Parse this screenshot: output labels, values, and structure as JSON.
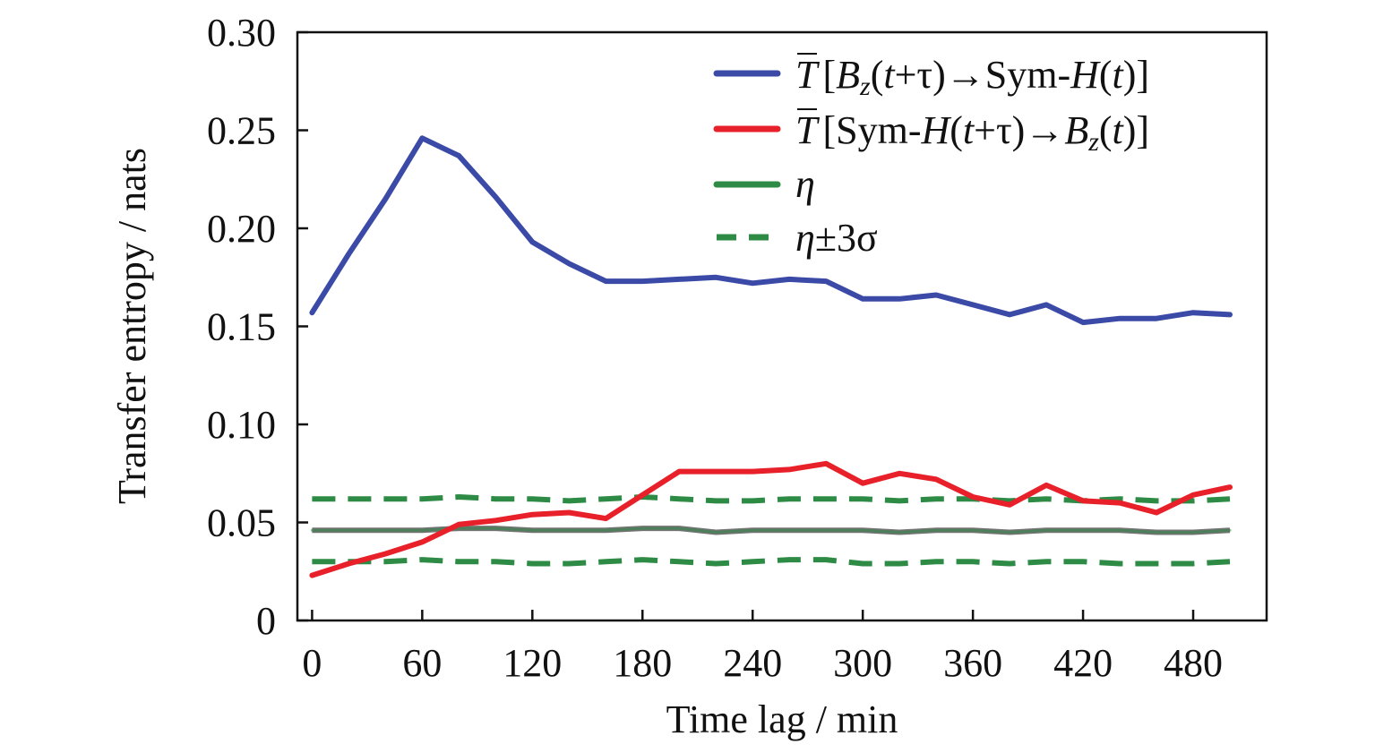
{
  "chart_data": {
    "type": "line",
    "xlabel": "Time lag / min",
    "ylabel": "Transfer entropy / nats",
    "xlim": [
      -8,
      520
    ],
    "ylim": [
      0,
      0.3
    ],
    "xticks": [
      0,
      60,
      120,
      180,
      240,
      300,
      360,
      420,
      480
    ],
    "xtick_labels": [
      "0",
      "60",
      "120",
      "180",
      "240",
      "300",
      "360",
      "420",
      "480"
    ],
    "yticks": [
      0,
      0.05,
      0.1,
      0.15,
      0.2,
      0.25,
      0.3
    ],
    "ytick_labels": [
      "0",
      "0.05",
      "0.10",
      "0.15",
      "0.20",
      "0.25",
      "0.30"
    ],
    "grid": false,
    "legend_position": "top-right",
    "x": [
      0,
      20,
      40,
      60,
      80,
      100,
      120,
      140,
      160,
      180,
      200,
      220,
      240,
      260,
      280,
      300,
      320,
      340,
      360,
      380,
      400,
      420,
      440,
      460,
      480,
      500
    ],
    "series": [
      {
        "key": "bz_to_symh",
        "legend_label": "T̄ [Bz(t+τ)→Sym-H(t)]",
        "legend_parts": {
          "tbar": "T",
          "l1": "[",
          "b": "B",
          "sub": "z",
          "l2": "(",
          "t": "t",
          "l3": "+τ)→Sym-",
          "h": "H",
          "l4": "(",
          "t2": "t",
          "l5": ")]"
        },
        "color": "#3a4aa6",
        "style": "solid",
        "values": [
          0.157,
          0.187,
          0.215,
          0.246,
          0.237,
          0.216,
          0.193,
          0.182,
          0.173,
          0.173,
          0.174,
          0.175,
          0.172,
          0.174,
          0.173,
          0.164,
          0.164,
          0.166,
          0.161,
          0.156,
          0.161,
          0.152,
          0.154,
          0.154,
          0.157,
          0.156
        ]
      },
      {
        "key": "symh_to_bz",
        "legend_label": "T̄ [Sym-H(t+τ)→Bz(t)]",
        "legend_parts": {
          "tbar": "T",
          "l1": "[Sym-",
          "h": "H",
          "l2": "(",
          "t": "t",
          "l3": "+τ)→",
          "b": "B",
          "sub": "z",
          "l4": "(",
          "t2": "t",
          "l5": ")]"
        },
        "color": "#e8202a",
        "style": "solid",
        "values": [
          0.023,
          0.029,
          0.034,
          0.04,
          0.049,
          0.051,
          0.054,
          0.055,
          0.052,
          0.064,
          0.076,
          0.076,
          0.076,
          0.077,
          0.08,
          0.07,
          0.075,
          0.072,
          0.063,
          0.059,
          0.069,
          0.061,
          0.06,
          0.055,
          0.064,
          0.068
        ]
      },
      {
        "key": "eta",
        "legend_label": "η",
        "color_shaded": [
          "#2e8b45",
          "#5a5a5a"
        ],
        "color": "#2e8b45",
        "style": "solid",
        "values": [
          0.046,
          0.046,
          0.046,
          0.046,
          0.047,
          0.047,
          0.046,
          0.046,
          0.046,
          0.047,
          0.047,
          0.045,
          0.046,
          0.046,
          0.046,
          0.046,
          0.045,
          0.046,
          0.046,
          0.045,
          0.046,
          0.046,
          0.046,
          0.045,
          0.045,
          0.046
        ]
      },
      {
        "key": "eta_plus",
        "legend_label": "η±3σ",
        "color": "#2e8b45",
        "style": "dashed",
        "values": [
          0.062,
          0.062,
          0.062,
          0.062,
          0.063,
          0.062,
          0.062,
          0.061,
          0.062,
          0.063,
          0.062,
          0.061,
          0.061,
          0.062,
          0.062,
          0.062,
          0.061,
          0.062,
          0.062,
          0.061,
          0.062,
          0.061,
          0.062,
          0.061,
          0.061,
          0.062
        ]
      },
      {
        "key": "eta_minus",
        "legend_label": "",
        "color": "#2e8b45",
        "style": "dashed",
        "values": [
          0.03,
          0.03,
          0.03,
          0.031,
          0.03,
          0.03,
          0.029,
          0.029,
          0.03,
          0.031,
          0.03,
          0.029,
          0.03,
          0.031,
          0.031,
          0.029,
          0.029,
          0.03,
          0.03,
          0.029,
          0.03,
          0.03,
          0.029,
          0.029,
          0.029,
          0.03
        ]
      }
    ],
    "legend_eta_symbol": "η",
    "legend_eta_sigma": "±3σ"
  }
}
